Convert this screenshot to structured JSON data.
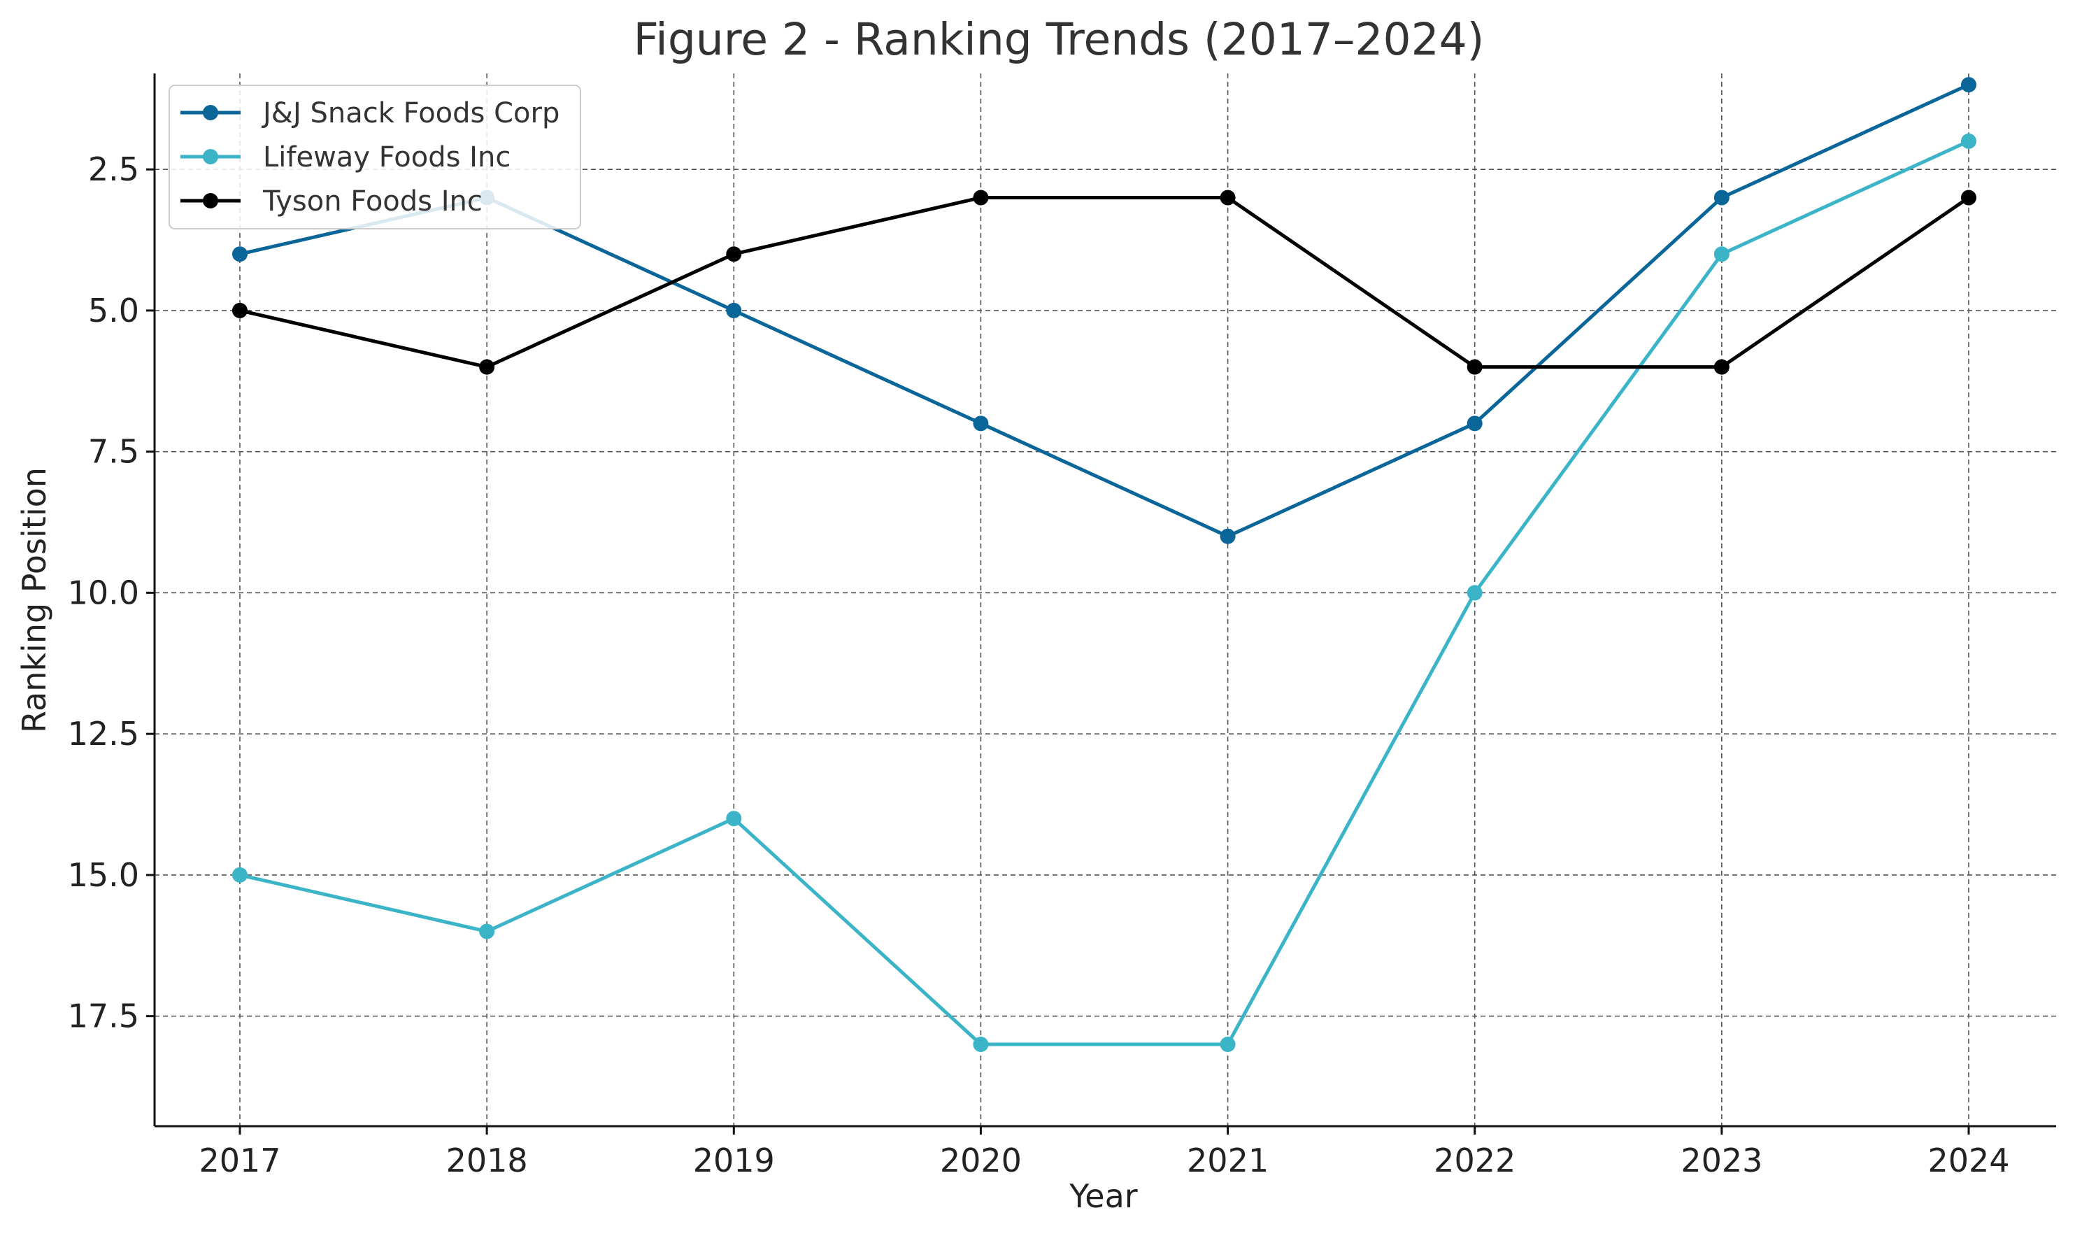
{
  "chart_data": {
    "type": "line",
    "title": "Figure 2 - Ranking Trends (2017–2024)",
    "xlabel": "Year",
    "ylabel": "Ranking Position",
    "x": [
      2017,
      2018,
      2019,
      2020,
      2021,
      2022,
      2023,
      2024
    ],
    "x_tick_labels": [
      "2017",
      "2018",
      "2019",
      "2020",
      "2021",
      "2022",
      "2023",
      "2024"
    ],
    "y_ticks": [
      2.5,
      5.0,
      7.5,
      10.0,
      12.5,
      15.0,
      17.5
    ],
    "y_tick_labels": [
      "2.5",
      "5.0",
      "7.5",
      "10.0",
      "12.5",
      "15.0",
      "17.5"
    ],
    "ylim": [
      0.8,
      19.45
    ],
    "y_inverted": true,
    "grid": true,
    "legend_position": "top-left",
    "series": [
      {
        "name": "J&J Snack Foods Corp",
        "color": "#0a6699",
        "values": [
          4,
          3,
          5,
          7,
          9,
          7,
          3,
          1
        ]
      },
      {
        "name": "Lifeway Foods Inc",
        "color": "#3cb4c8",
        "values": [
          15,
          16,
          14,
          18,
          18,
          10,
          4,
          2
        ]
      },
      {
        "name": "Tyson Foods Inc",
        "color": "#000000",
        "values": [
          5,
          6,
          4,
          3,
          3,
          6,
          6,
          3
        ]
      }
    ]
  }
}
